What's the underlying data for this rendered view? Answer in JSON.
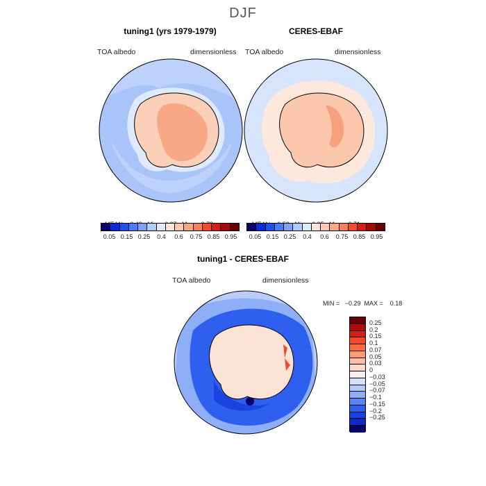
{
  "figure": {
    "title": "DJF"
  },
  "panels": [
    {
      "title": "tuning1 (yrs 1979-1979)",
      "var_label": "TOA albedo",
      "units_label": "dimensionless",
      "stats": {
        "mean_label": "MEAN=",
        "mean": "0.48",
        "min_label": "Min=",
        "min": "0.27",
        "max_label": "Max=",
        "max": "0.73"
      }
    },
    {
      "title": "CERES-EBAF",
      "var_label": "TOA albedo",
      "units_label": "dimensionless",
      "stats": {
        "mean_label": "MEAN=",
        "mean": "0.53",
        "min_label": "Min=",
        "min": "0.35",
        "max_label": "Max=",
        "max": "0.71"
      }
    },
    {
      "title": "tuning1 - CERES-EBAF",
      "var_label": "TOA albedo",
      "units_label": "dimensionless",
      "stats_line": "MIN =   −0.29  MAX =    0.18"
    }
  ],
  "colorbar_top": {
    "colors": [
      "#08006b",
      "#0a2bd6",
      "#1e50f0",
      "#4a7cf5",
      "#7fa2f8",
      "#b4c9fb",
      "#e0eafd",
      "#fbe5d8",
      "#fcc9b0",
      "#fba882",
      "#f87f57",
      "#f24a2c",
      "#d81e12",
      "#a30a06",
      "#6b0000"
    ],
    "tick_labels": [
      "0.05",
      "0.15",
      "0.25",
      "0.4",
      "0.6",
      "0.75",
      "0.85",
      "0.95"
    ]
  },
  "colorbar_diff": {
    "colors": [
      "#6b0000",
      "#b20a06",
      "#d81e12",
      "#f24a2c",
      "#fb6b3c",
      "#fb9a73",
      "#fcbea2",
      "#fcdac9",
      "#f7efe9",
      "#d6e2fb",
      "#b4c9fb",
      "#8eaef8",
      "#5a86f4",
      "#2f5fef",
      "#1a44e0",
      "#0a2bc6",
      "#08006b"
    ],
    "tick_labels": [
      "0.25",
      "0.2",
      "0.15",
      "0.1",
      "0.07",
      "0.05",
      "0.03",
      "0",
      "−0.03",
      "−0.05",
      "−0.07",
      "−0.1",
      "−0.15",
      "−0.2",
      "−0.25"
    ]
  }
}
